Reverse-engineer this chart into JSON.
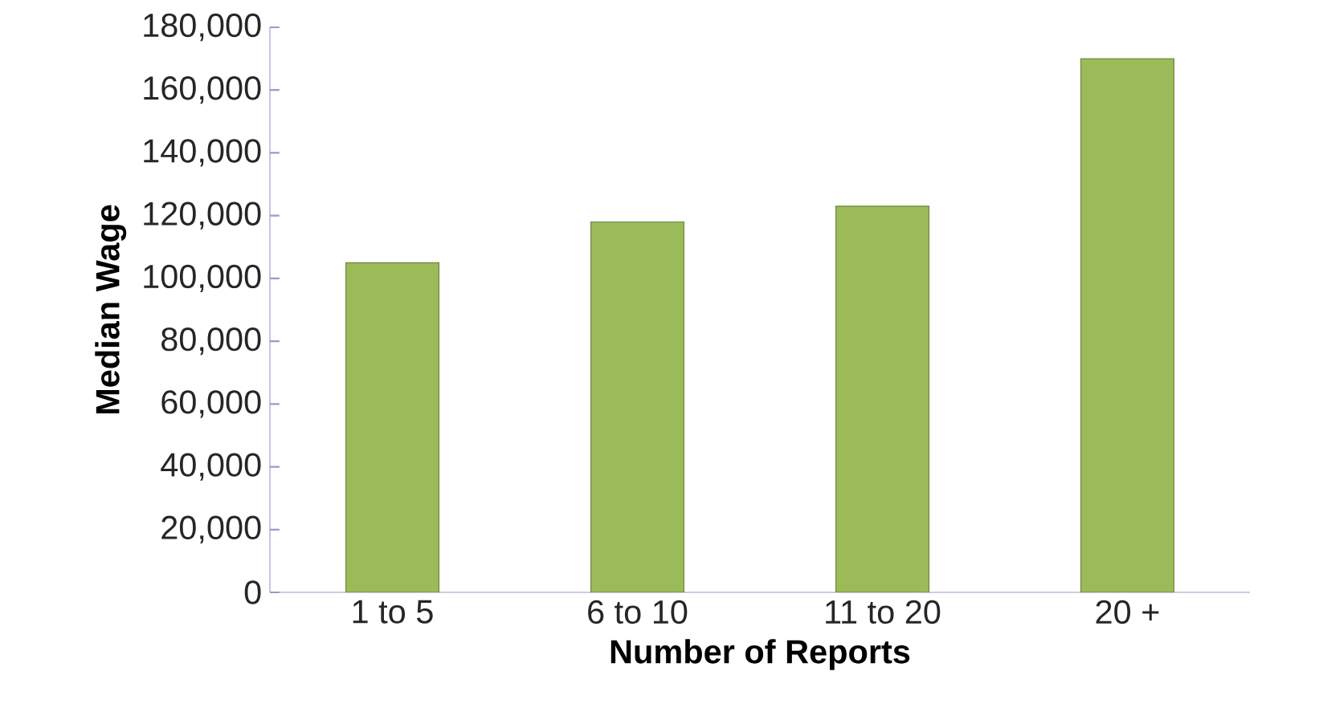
{
  "chart_data": {
    "type": "bar",
    "xlabel": "Number of Reports",
    "ylabel": "Median Wage",
    "categories": [
      "1 to 5",
      "6 to 10",
      "11 to 20",
      "20 +"
    ],
    "values": [
      105000,
      118000,
      123000,
      170000
    ],
    "color": "#9bbb59",
    "ylim": [
      0,
      180000
    ],
    "yticks": [
      {
        "value": 0,
        "label": "0"
      },
      {
        "value": 20000,
        "label": "20,000"
      },
      {
        "value": 40000,
        "label": "40,000"
      },
      {
        "value": 60000,
        "label": "60,000"
      },
      {
        "value": 80000,
        "label": "80,000"
      },
      {
        "value": 100000,
        "label": "100,000"
      },
      {
        "value": 120000,
        "label": "120,000"
      },
      {
        "value": 140000,
        "label": "140,000"
      },
      {
        "value": 160000,
        "label": "160,000"
      },
      {
        "value": 180000,
        "label": "180,000"
      }
    ],
    "grid": false
  }
}
